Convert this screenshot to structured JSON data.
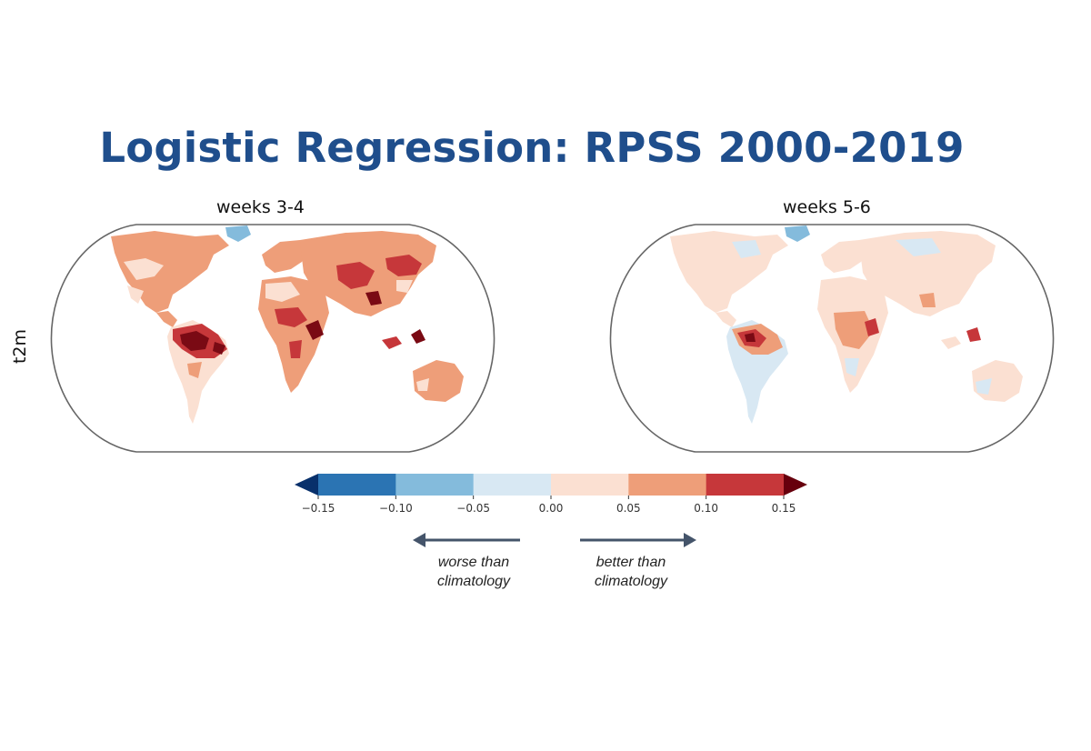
{
  "title": "Logistic Regression: RPSS 2000-2019",
  "row_label": "t2m",
  "panels": [
    {
      "label": "weeks 3-4"
    },
    {
      "label": "weeks 5-6"
    }
  ],
  "colorbar": {
    "ticks": [
      "−0.15",
      "−0.10",
      "−0.05",
      "0.00",
      "0.05",
      "0.10",
      "0.15"
    ],
    "colors": {
      "extend_low": "#08306b",
      "bins": [
        "#2b74b3",
        "#84bbdc",
        "#d8e8f3",
        "#fbe0d2",
        "#ee9e79",
        "#c6373a"
      ],
      "extend_high": "#67000d"
    }
  },
  "annotations": {
    "worse": "worse than climatology",
    "worse_line1": "worse than",
    "worse_line2": "climatology",
    "better": "better than climatology",
    "better_line1": "better than",
    "better_line2": "climatology",
    "arrow_color": "#44546a"
  },
  "map_colors": {
    "outline": "#666666",
    "light_blue": "#d8e8f3",
    "mid_blue": "#84bbdc",
    "light_red": "#fbe0d2",
    "mid_red": "#ee9e79",
    "red": "#c6373a",
    "dark_red": "#7a0a14"
  }
}
